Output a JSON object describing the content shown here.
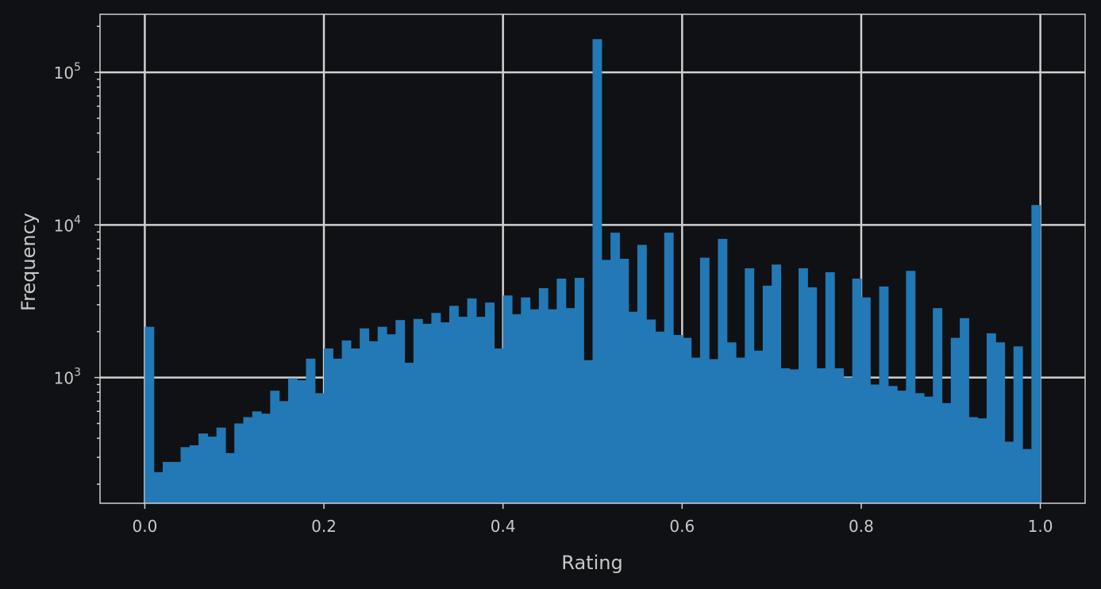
{
  "colors": {
    "background": "#101114",
    "bar": "#2279b5",
    "grid": "#d0d0d0",
    "text": "#c8c8c8"
  },
  "chart_data": {
    "type": "bar",
    "xlabel": "Rating",
    "ylabel": "Frequency",
    "xlim": [
      -0.05,
      1.05
    ],
    "ylim": [
      150,
      240000
    ],
    "y_scale": "log",
    "grid": true,
    "x_ticks": [
      0.0,
      0.2,
      0.4,
      0.6,
      0.8,
      1.0
    ],
    "x_tick_labels": [
      "0.0",
      "0.2",
      "0.4",
      "0.6",
      "0.8",
      "1.0"
    ],
    "y_ticks": [
      1000,
      10000,
      100000
    ],
    "y_tick_labels": [
      {
        "base": "10",
        "exp": "3"
      },
      {
        "base": "10",
        "exp": "4"
      },
      {
        "base": "10",
        "exp": "5"
      }
    ],
    "bin_edges": {
      "start": 0.0,
      "width": 0.01
    },
    "values": [
      2150,
      240,
      280,
      280,
      350,
      360,
      430,
      410,
      470,
      320,
      500,
      550,
      600,
      580,
      820,
      700,
      990,
      960,
      1330,
      790,
      1550,
      1330,
      1750,
      1550,
      2100,
      1730,
      2150,
      1920,
      2380,
      1250,
      2420,
      2250,
      2650,
      2300,
      2950,
      2500,
      3300,
      2500,
      3100,
      1550,
      3450,
      2600,
      3350,
      2800,
      3850,
      2800,
      4450,
      2850,
      4500,
      1300,
      165000,
      5900,
      8900,
      6000,
      2700,
      7400,
      2400,
      2000,
      8900,
      1900,
      1820,
      1350,
      6100,
      1320,
      8100,
      1700,
      1350,
      5200,
      1500,
      4000,
      5500,
      1150,
      1130,
      5200,
      3900,
      1150,
      4900,
      1150,
      1000,
      4450,
      3350,
      900,
      3950,
      880,
      820,
      5000,
      790,
      750,
      2850,
      680,
      1820,
      2450,
      550,
      540,
      1950,
      1700,
      380,
      1600,
      340,
      13500
    ]
  }
}
